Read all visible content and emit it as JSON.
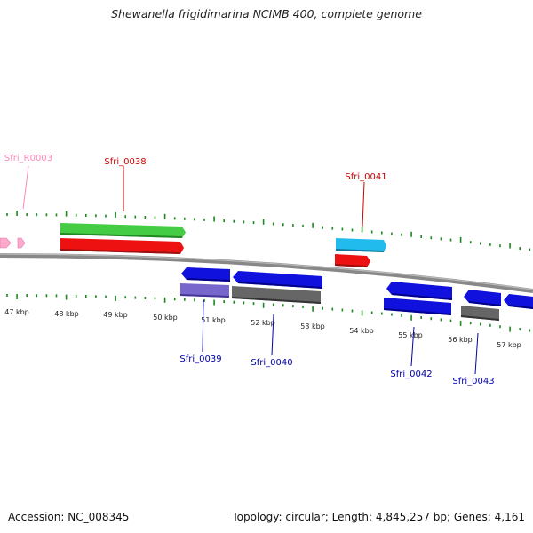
{
  "title": "Shewanella frigidimarina NCIMB 400, complete genome",
  "footer": {
    "accession": "Accession: NC_008345",
    "summary": "Topology: circular; Length: 4,845,257 bp; Genes: 4,161"
  },
  "colors": {
    "backbone": "#888888",
    "tick": "#1a8a1a",
    "label_forward": "#cc0000",
    "label_reverse": "#0000aa",
    "label_rna": "#ff88bb",
    "rna": "#ffaacc",
    "cds_forward": "#ee1111",
    "cds_reverse": "#1111dd",
    "gene_green": "#44cc44",
    "gene_cyan": "#22bbee",
    "gene_lavender": "#7766cc",
    "gene_gray": "#666666"
  },
  "scale": {
    "tick_labels": [
      "47 kbp",
      "48 kbp",
      "49 kbp",
      "50 kbp",
      "51 kbp",
      "52 kbp",
      "53 kbp",
      "54 kbp",
      "55 kbp",
      "56 kbp",
      "57 kbp"
    ]
  },
  "genes": [
    {
      "id": "Sfri_R0003",
      "label": "Sfri_R0003",
      "strand": "+",
      "type": "rna"
    },
    {
      "id": "Sfri_0038",
      "label": "Sfri_0038",
      "strand": "+",
      "type": "cds"
    },
    {
      "id": "Sfri_0039",
      "label": "Sfri_0039",
      "strand": "-",
      "type": "cds"
    },
    {
      "id": "Sfri_0040",
      "label": "Sfri_0040",
      "strand": "-",
      "type": "cds"
    },
    {
      "id": "Sfri_0041",
      "label": "Sfri_0041",
      "strand": "+",
      "type": "cds"
    },
    {
      "id": "Sfri_0042",
      "label": "Sfri_0042",
      "strand": "-",
      "type": "cds"
    },
    {
      "id": "Sfri_0043",
      "label": "Sfri_0043",
      "strand": "-",
      "type": "cds"
    }
  ]
}
